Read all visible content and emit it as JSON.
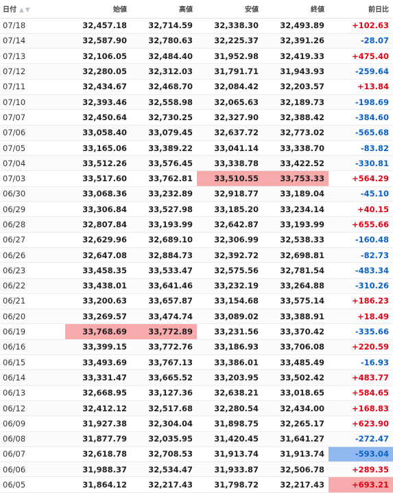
{
  "headers": {
    "date": "日付",
    "open": "始値",
    "high": "高値",
    "low": "安値",
    "close": "終値",
    "change": "前日比",
    "sort_icons": "▲▼"
  },
  "colors": {
    "up": "#e60012",
    "down": "#0a62c9",
    "highlight_red": "#f8a9ab",
    "highlight_blue": "#8fb8ee"
  },
  "rows": [
    {
      "date": "07/18",
      "open": "32,457.18",
      "high": "32,714.59",
      "low": "32,338.30",
      "close": "32,493.89",
      "change": "+102.63"
    },
    {
      "date": "07/14",
      "open": "32,587.90",
      "high": "32,780.63",
      "low": "32,225.37",
      "close": "32,391.26",
      "change": "-28.07"
    },
    {
      "date": "07/13",
      "open": "32,106.05",
      "high": "32,484.40",
      "low": "31,952.98",
      "close": "32,419.33",
      "change": "+475.40"
    },
    {
      "date": "07/12",
      "open": "32,280.05",
      "high": "32,312.03",
      "low": "31,791.71",
      "close": "31,943.93",
      "change": "-259.64"
    },
    {
      "date": "07/11",
      "open": "32,434.67",
      "high": "32,468.70",
      "low": "32,084.42",
      "close": "32,203.57",
      "change": "+13.84"
    },
    {
      "date": "07/10",
      "open": "32,393.46",
      "high": "32,558.98",
      "low": "32,065.63",
      "close": "32,189.73",
      "change": "-198.69"
    },
    {
      "date": "07/07",
      "open": "32,450.64",
      "high": "32,730.25",
      "low": "32,327.90",
      "close": "32,388.42",
      "change": "-384.60"
    },
    {
      "date": "07/06",
      "open": "33,058.40",
      "high": "33,079.45",
      "low": "32,637.72",
      "close": "32,773.02",
      "change": "-565.68"
    },
    {
      "date": "07/05",
      "open": "33,165.06",
      "high": "33,389.22",
      "low": "33,041.14",
      "close": "33,338.70",
      "change": "-83.82"
    },
    {
      "date": "07/04",
      "open": "33,512.26",
      "high": "33,576.45",
      "low": "33,338.78",
      "close": "33,422.52",
      "change": "-330.81"
    },
    {
      "date": "07/03",
      "open": "33,517.60",
      "high": "33,762.81",
      "low": "33,510.55",
      "close": "33,753.33",
      "change": "+564.29"
    },
    {
      "date": "06/30",
      "open": "33,068.36",
      "high": "33,232.89",
      "low": "32,918.77",
      "close": "33,189.04",
      "change": "-45.10"
    },
    {
      "date": "06/29",
      "open": "33,306.84",
      "high": "33,527.98",
      "low": "33,185.20",
      "close": "33,234.14",
      "change": "+40.15"
    },
    {
      "date": "06/28",
      "open": "32,807.84",
      "high": "33,193.99",
      "low": "32,642.87",
      "close": "33,193.99",
      "change": "+655.66"
    },
    {
      "date": "06/27",
      "open": "32,629.96",
      "high": "32,689.10",
      "low": "32,306.99",
      "close": "32,538.33",
      "change": "-160.48"
    },
    {
      "date": "06/26",
      "open": "32,647.08",
      "high": "32,884.73",
      "low": "32,392.72",
      "close": "32,698.81",
      "change": "-82.73"
    },
    {
      "date": "06/23",
      "open": "33,458.35",
      "high": "33,533.47",
      "low": "32,575.56",
      "close": "32,781.54",
      "change": "-483.34"
    },
    {
      "date": "06/22",
      "open": "33,438.01",
      "high": "33,641.46",
      "low": "33,232.19",
      "close": "33,264.88",
      "change": "-310.26"
    },
    {
      "date": "06/21",
      "open": "33,200.63",
      "high": "33,657.87",
      "low": "33,154.68",
      "close": "33,575.14",
      "change": "+186.23"
    },
    {
      "date": "06/20",
      "open": "33,269.57",
      "high": "33,474.74",
      "low": "33,089.02",
      "close": "33,388.91",
      "change": "+18.49"
    },
    {
      "date": "06/19",
      "open": "33,768.69",
      "high": "33,772.89",
      "low": "33,231.56",
      "close": "33,370.42",
      "change": "-335.66"
    },
    {
      "date": "06/16",
      "open": "33,399.15",
      "high": "33,772.76",
      "low": "33,186.93",
      "close": "33,706.08",
      "change": "+220.59"
    },
    {
      "date": "06/15",
      "open": "33,493.69",
      "high": "33,767.13",
      "low": "33,386.01",
      "close": "33,485.49",
      "change": "-16.93"
    },
    {
      "date": "06/14",
      "open": "33,331.47",
      "high": "33,665.52",
      "low": "33,203.95",
      "close": "33,502.42",
      "change": "+483.77"
    },
    {
      "date": "06/13",
      "open": "32,668.95",
      "high": "33,127.36",
      "low": "32,638.21",
      "close": "33,018.65",
      "change": "+584.65"
    },
    {
      "date": "06/12",
      "open": "32,412.12",
      "high": "32,517.68",
      "low": "32,280.54",
      "close": "32,434.00",
      "change": "+168.83"
    },
    {
      "date": "06/09",
      "open": "31,927.38",
      "high": "32,304.04",
      "low": "31,898.75",
      "close": "32,265.17",
      "change": "+623.90"
    },
    {
      "date": "06/08",
      "open": "31,877.79",
      "high": "32,035.95",
      "low": "31,420.45",
      "close": "31,641.27",
      "change": "-272.47"
    },
    {
      "date": "06/07",
      "open": "32,618.78",
      "high": "32,708.53",
      "low": "31,913.74",
      "close": "31,913.74",
      "change": "-593.04"
    },
    {
      "date": "06/06",
      "open": "31,988.37",
      "high": "32,534.47",
      "low": "31,933.87",
      "close": "32,506.78",
      "change": "+289.35"
    },
    {
      "date": "06/05",
      "open": "31,864.12",
      "high": "32,217.43",
      "low": "31,798.72",
      "close": "32,217.43",
      "change": "+693.21"
    }
  ]
}
